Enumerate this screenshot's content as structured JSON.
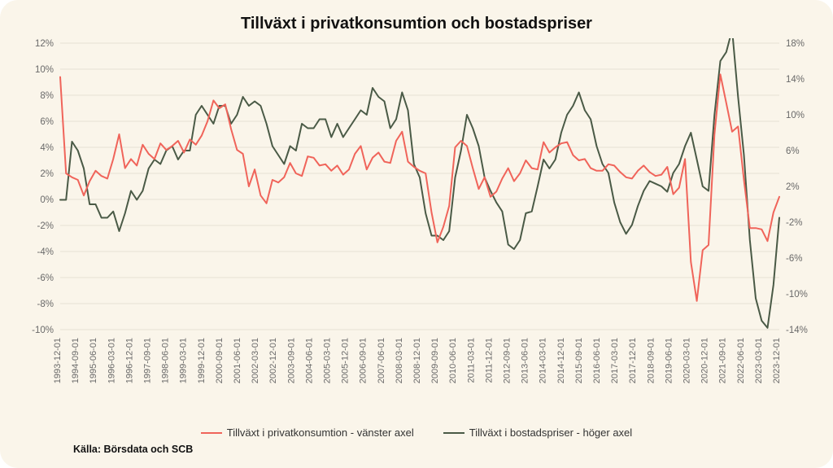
{
  "chart": {
    "type": "line-dual-axis",
    "title": "Tillväxt i privatkonsumtion och bostadspriser",
    "title_fontsize": 20,
    "source_label": "Källa: Börsdata och SCB",
    "background_color": "#faf5ea",
    "grid_color": "#e7e1d4",
    "text_color": "#696969",
    "series1": {
      "label": "Tillväxt i privatkonsumtion - vänster axel",
      "color": "#f0645a",
      "line_width": 2
    },
    "series2": {
      "label": "Tillväxt i bostadspriser - höger axel",
      "color": "#4a5a46",
      "line_width": 2
    },
    "y_left": {
      "min": -10,
      "max": 12,
      "tick_step": 2,
      "format": "percent"
    },
    "y_right": {
      "min": -14,
      "max": 18,
      "ticks": [
        -14,
        -10,
        -6,
        -2,
        2,
        6,
        10,
        14,
        18
      ],
      "format": "percent"
    },
    "x_labels": [
      "1993-12-01",
      "1994-09-01",
      "1995-06-01",
      "1996-03-01",
      "1996-12-01",
      "1997-09-01",
      "1998-06-01",
      "1999-03-01",
      "1999-12-01",
      "2000-09-01",
      "2001-06-01",
      "2002-03-01",
      "2002-12-01",
      "2003-09-01",
      "2004-06-01",
      "2005-03-01",
      "2005-12-01",
      "2006-09-01",
      "2007-06-01",
      "2008-03-01",
      "2008-12-01",
      "2009-09-01",
      "2010-06-01",
      "2011-03-01",
      "2011-12-01",
      "2012-09-01",
      "2013-06-01",
      "2014-03-01",
      "2014-12-01",
      "2015-09-01",
      "2016-06-01",
      "2017-03-01",
      "2017-12-01",
      "2018-09-01",
      "2019-06-01",
      "2020-03-01",
      "2020-12-01",
      "2021-09-01",
      "2022-06-01",
      "2023-03-01",
      "2023-12-01"
    ],
    "series1_data": [
      9.4,
      2,
      1.7,
      1.5,
      0.3,
      1.4,
      2.2,
      1.8,
      1.6,
      3.1,
      5,
      2.4,
      3.1,
      2.6,
      4.2,
      3.5,
      3.1,
      4.3,
      3.8,
      4.1,
      4.5,
      3.6,
      4.6,
      4.2,
      4.9,
      6,
      7.6,
      7,
      7.3,
      5.4,
      3.8,
      3.5,
      1,
      2.3,
      0.3,
      -0.3,
      1.5,
      1.3,
      1.7,
      2.8,
      2,
      1.8,
      3.3,
      3.2,
      2.6,
      2.7,
      2.2,
      2.6,
      1.9,
      2.3,
      3.5,
      4.1,
      2.3,
      3.2,
      3.6,
      2.9,
      2.8,
      4.5,
      5.2,
      2.9,
      2.5,
      2.2,
      2.0,
      -1.0,
      -3.3,
      -2.1,
      -0.5,
      4.0,
      4.5,
      4.1,
      2.4,
      0.8,
      1.7,
      0.2,
      0.6,
      1.6,
      2.4,
      1.4,
      2.0,
      3.0,
      2.4,
      2.3,
      4.4,
      3.6,
      4.0,
      4.3,
      4.4,
      3.4,
      3.0,
      3.1,
      2.4,
      2.2,
      2.2,
      2.7,
      2.6,
      2.1,
      1.7,
      1.6,
      2.2,
      2.6,
      2.1,
      1.8,
      1.9,
      2.5,
      0.4,
      0.9,
      3.1,
      -4.8,
      -7.8,
      -3.9,
      -3.5,
      5,
      9.6,
      7.4,
      5.2,
      5.6,
      1.5,
      -2.2,
      -2.2,
      -2.3,
      -3.2,
      -1.0,
      0.2
    ],
    "series2_data": [
      0.5,
      0.5,
      7,
      6,
      4,
      0,
      0,
      -1.5,
      -1.5,
      -0.8,
      -3,
      -1.0,
      1.5,
      0.5,
      1.5,
      4,
      5,
      4.5,
      6,
      6.5,
      5,
      6,
      6,
      10,
      11,
      10,
      9,
      11,
      11,
      9,
      10,
      12,
      11,
      11.5,
      11,
      9,
      6.5,
      5.5,
      4.5,
      6.5,
      6,
      9,
      8.5,
      8.5,
      9.5,
      9.5,
      7.5,
      9,
      7.5,
      8.5,
      9.5,
      10.5,
      10,
      13,
      12,
      11.5,
      8.5,
      9.5,
      12.5,
      10.5,
      4.5,
      3,
      -1,
      -3.5,
      -3.5,
      -4,
      -3,
      3,
      6,
      10,
      8.5,
      6.5,
      3,
      1.5,
      0.2,
      -0.8,
      -4.5,
      -5,
      -4,
      -1,
      -0.8,
      2,
      5,
      4,
      5,
      8,
      10,
      11,
      12.5,
      10.5,
      9.5,
      6.5,
      4.5,
      3.5,
      0.2,
      -2,
      -3.3,
      -2.3,
      -0.2,
      1.5,
      2.6,
      2.3,
      2.0,
      1.4,
      3.5,
      4.5,
      6.5,
      8,
      5,
      2.0,
      1.5,
      10,
      16,
      17,
      19.5,
      12,
      5.5,
      -4,
      -10.5,
      -13,
      -13.8,
      -9,
      -1.5
    ]
  }
}
